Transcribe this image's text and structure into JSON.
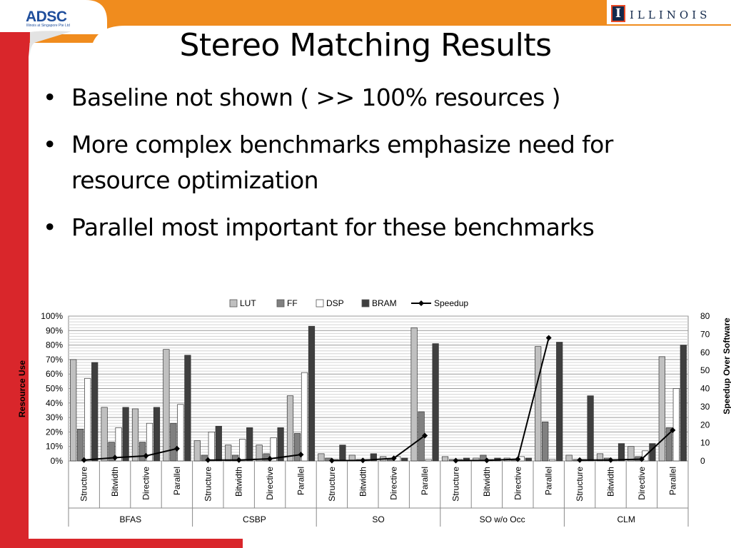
{
  "slide": {
    "title": "Stereo Matching Results",
    "bullets": [
      "Baseline not shown ( >> 100% resources )",
      "More complex benchmarks emphasize need for resource optimization",
      "Parallel most important for these benchmarks"
    ],
    "bullet_symbol": "•"
  },
  "logos": {
    "left_text": "ADSC",
    "left_tagline": "Illinois at Singapore Pte Ltd",
    "right_block": "I",
    "right_text": "ILLINOIS"
  },
  "colors": {
    "red_bar": "#d9262b",
    "orange_band": "#f08c1e",
    "illinois_blue": "#13294b",
    "lut": "#c0c0c0",
    "ff": "#808080",
    "dsp": "#ffffff",
    "bram": "#3f3f3f",
    "speedup": "#000000"
  },
  "chart_data": {
    "type": "bar",
    "groups": [
      {
        "name": "BFAS",
        "categories": [
          "Structure",
          "Bitwidth",
          "Directive",
          "Parallel"
        ]
      },
      {
        "name": "CSBP",
        "categories": [
          "Structure",
          "Bitwidth",
          "Directive",
          "Parallel"
        ]
      },
      {
        "name": "SO",
        "categories": [
          "Structure",
          "Bitwidth",
          "Directive",
          "Parallel"
        ]
      },
      {
        "name": "SO w/o Occ",
        "categories": [
          "Structure",
          "Bitwidth",
          "Directive",
          "Parallel"
        ]
      },
      {
        "name": "CLM",
        "categories": [
          "Structure",
          "Bitwidth",
          "Directive",
          "Parallel"
        ]
      }
    ],
    "series": [
      {
        "name": "LUT",
        "axis": "left",
        "values": [
          70,
          37,
          36,
          77,
          14,
          11,
          11,
          45,
          5,
          4,
          3,
          92,
          3,
          2,
          2,
          79,
          4,
          5,
          10,
          72
        ]
      },
      {
        "name": "FF",
        "axis": "left",
        "values": [
          22,
          13,
          13,
          26,
          4,
          4,
          5,
          19,
          2,
          1,
          1,
          34,
          1,
          4,
          1,
          27,
          1,
          2,
          3,
          23
        ]
      },
      {
        "name": "DSP",
        "axis": "left",
        "values": [
          57,
          23,
          26,
          39,
          20,
          15,
          16,
          61,
          1,
          1,
          3,
          1,
          1,
          1,
          3,
          1,
          1,
          1,
          7,
          50
        ]
      },
      {
        "name": "BRAM",
        "axis": "left",
        "values": [
          68,
          37,
          37,
          73,
          24,
          23,
          23,
          93,
          11,
          5,
          2,
          81,
          2,
          2,
          2,
          82,
          45,
          12,
          12,
          80
        ]
      },
      {
        "name": "Speedup",
        "axis": "right",
        "type": "line",
        "values": [
          0.5,
          1.8,
          2.8,
          6.8,
          0.5,
          0.5,
          1.2,
          3.5,
          0.2,
          0.3,
          1.5,
          14,
          0.2,
          0.3,
          1,
          68,
          0.5,
          0.5,
          1,
          17
        ]
      }
    ],
    "ylabel": "Resource Use",
    "y2label": "Speedup Over Software",
    "ylim": [
      0,
      100
    ],
    "y2lim": [
      0,
      80
    ],
    "yticks": [
      "0%",
      "10%",
      "20%",
      "30%",
      "40%",
      "50%",
      "60%",
      "70%",
      "80%",
      "90%",
      "100%"
    ],
    "y2ticks": [
      "0",
      "10",
      "20",
      "30",
      "40",
      "50",
      "60",
      "70",
      "80"
    ],
    "legend": "top",
    "grid": true
  }
}
